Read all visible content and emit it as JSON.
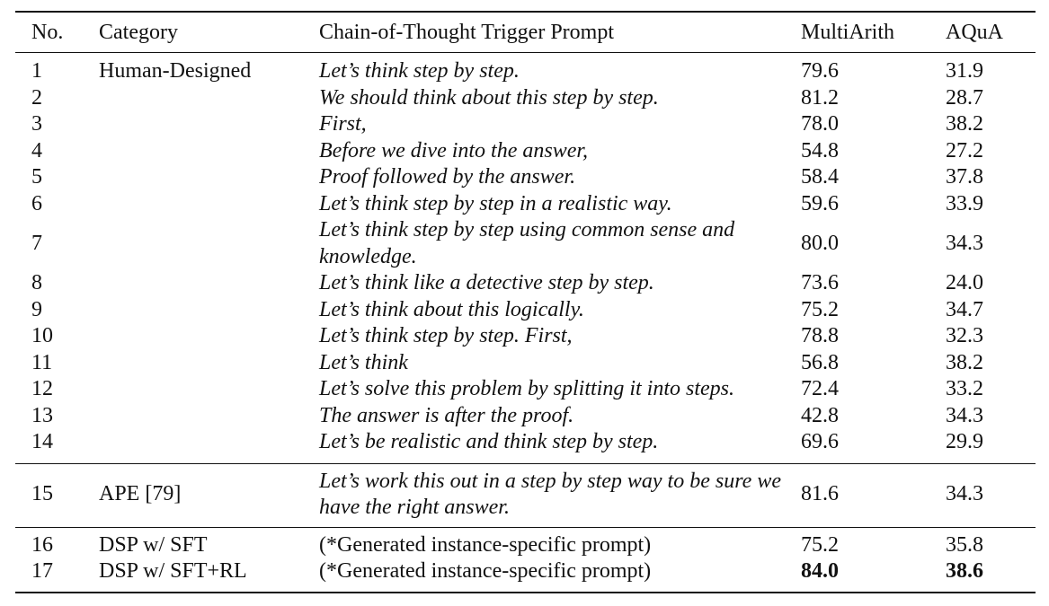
{
  "table": {
    "headers": {
      "no": "No.",
      "category": "Category",
      "prompt": "Chain-of-Thought Trigger Prompt",
      "multiarith": "MultiArith",
      "aqua": "AQuA"
    },
    "rows": [
      {
        "no": "1",
        "category": "Human-Designed",
        "prompt": "Let’s think step by step.",
        "multiarith": "79.6",
        "aqua": "31.9"
      },
      {
        "no": "2",
        "category": "",
        "prompt": "We should think about this step by step.",
        "multiarith": "81.2",
        "aqua": "28.7"
      },
      {
        "no": "3",
        "category": "",
        "prompt": "First,",
        "multiarith": "78.0",
        "aqua": "38.2"
      },
      {
        "no": "4",
        "category": "",
        "prompt": "Before we dive into the answer,",
        "multiarith": "54.8",
        "aqua": "27.2"
      },
      {
        "no": "5",
        "category": "",
        "prompt": "Proof followed by the answer.",
        "multiarith": "58.4",
        "aqua": "37.8"
      },
      {
        "no": "6",
        "category": "",
        "prompt": "Let’s think step by step in a realistic way.",
        "multiarith": "59.6",
        "aqua": "33.9"
      },
      {
        "no": "7",
        "category": "",
        "prompt": "Let’s think step by step using common sense and knowledge.",
        "multiarith": "80.0",
        "aqua": "34.3"
      },
      {
        "no": "8",
        "category": "",
        "prompt": "Let’s think like a detective step by step.",
        "multiarith": "73.6",
        "aqua": "24.0"
      },
      {
        "no": "9",
        "category": "",
        "prompt": "Let’s think about this logically.",
        "multiarith": "75.2",
        "aqua": "34.7"
      },
      {
        "no": "10",
        "category": "",
        "prompt": "Let’s think step by step. First,",
        "multiarith": "78.8",
        "aqua": "32.3"
      },
      {
        "no": "11",
        "category": "",
        "prompt": "Let’s think",
        "multiarith": "56.8",
        "aqua": "38.2"
      },
      {
        "no": "12",
        "category": "",
        "prompt": "Let’s solve this problem by splitting it into steps.",
        "multiarith": "72.4",
        "aqua": "33.2"
      },
      {
        "no": "13",
        "category": "",
        "prompt": "The answer is after the proof.",
        "multiarith": "42.8",
        "aqua": "34.3"
      },
      {
        "no": "14",
        "category": "",
        "prompt": "Let’s be realistic and think step by step.",
        "multiarith": "69.6",
        "aqua": "29.9"
      },
      {
        "no": "15",
        "category": "APE [79]",
        "prompt": "Let’s work this out in a step by step way to be sure we have the right answer.",
        "multiarith": "81.6",
        "aqua": "34.3"
      },
      {
        "no": "16",
        "category": "DSP w/ SFT",
        "prompt": "(*Generated instance-specific prompt)",
        "multiarith": "75.2",
        "aqua": "35.8"
      },
      {
        "no": "17",
        "category": "DSP w/ SFT+RL",
        "prompt": "(*Generated instance-specific prompt)",
        "multiarith": "84.0",
        "aqua": "38.6"
      }
    ]
  }
}
